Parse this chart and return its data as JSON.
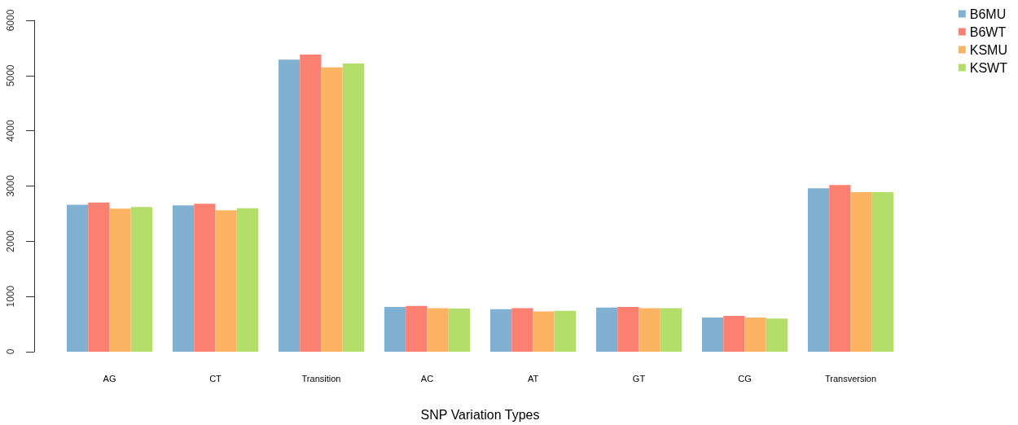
{
  "chart_data": {
    "type": "bar",
    "xlabel": "SNP Variation Types",
    "categories": [
      "AG",
      "CT",
      "Transition",
      "AC",
      "AT",
      "GT",
      "CG",
      "Transversion"
    ],
    "series": [
      {
        "name": "B6MU",
        "color": "#80b1d3",
        "values": [
          2660,
          2650,
          5290,
          810,
          770,
          800,
          620,
          2960
        ]
      },
      {
        "name": "B6WT",
        "color": "#fb8072",
        "values": [
          2700,
          2680,
          5380,
          830,
          790,
          810,
          650,
          3020
        ]
      },
      {
        "name": "KSMU",
        "color": "#fdb462",
        "values": [
          2590,
          2560,
          5150,
          790,
          730,
          790,
          620,
          2890
        ]
      },
      {
        "name": "KSWT",
        "color": "#b3de69",
        "values": [
          2620,
          2600,
          5220,
          780,
          740,
          790,
          600,
          2890
        ]
      }
    ],
    "ylim": [
      0,
      6000
    ],
    "yticks": [
      0,
      1000,
      2000,
      3000,
      4000,
      5000,
      6000
    ],
    "grid": false,
    "legend": "top right"
  }
}
